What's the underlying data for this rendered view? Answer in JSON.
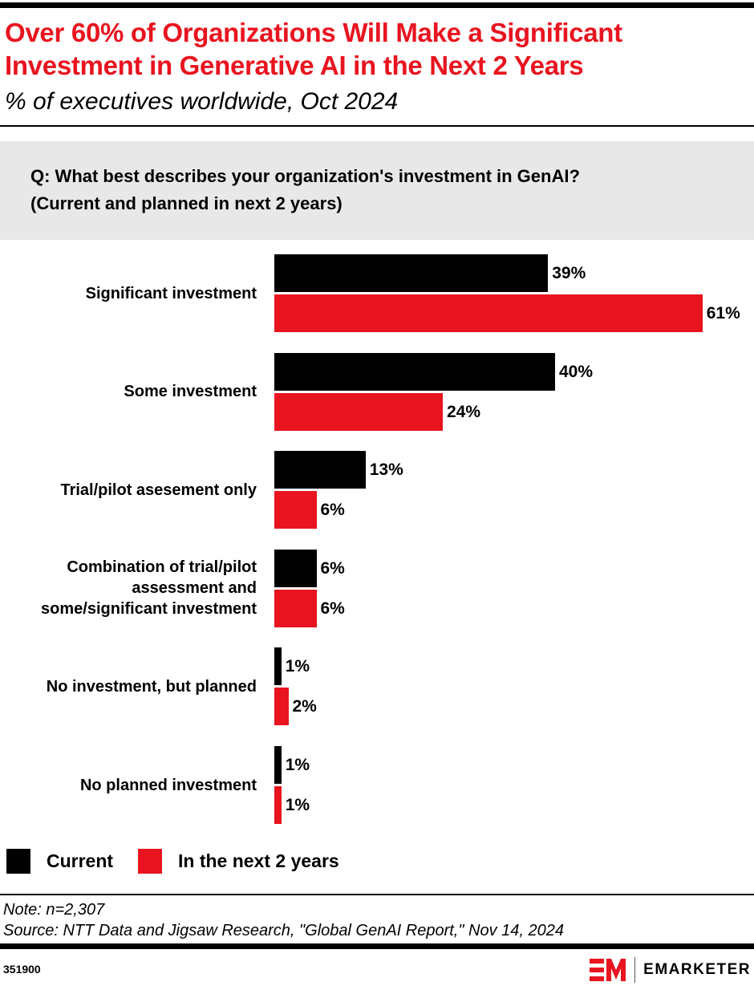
{
  "header": {
    "title": "Over 60% of Organizations Will Make a Significant Investment in Generative AI in the Next 2 Years",
    "subtitle": "% of executives worldwide, Oct 2024"
  },
  "question": {
    "line1": "Q: What best describes your organization's investment in GenAI?",
    "line2": "(Current and planned in next 2 years)"
  },
  "chart_data": {
    "type": "bar",
    "orientation": "horizontal",
    "categories": [
      "Significant investment",
      "Some investment",
      "Trial/pilot asesement only",
      "Combination of trial/pilot assessment and some/significant investment",
      "No investment, but planned",
      "No planned investment"
    ],
    "series": [
      {
        "name": "Current",
        "color": "#000000",
        "values": [
          39,
          40,
          13,
          6,
          1,
          1
        ]
      },
      {
        "name": "In the next 2 years",
        "color": "#e8141f",
        "values": [
          61,
          24,
          6,
          6,
          2,
          1
        ]
      }
    ],
    "value_suffix": "%",
    "xlim": [
      0,
      100
    ],
    "grid": false,
    "legend_placement": "bottom-left"
  },
  "footer": {
    "note": "Note: n=2,307",
    "source": "Source: NTT Data and Jigsaw Research, \"Global GenAI Report,\" Nov 14, 2024",
    "chart_id": "351900",
    "brand": "EMARKETER",
    "brand_color": "#e8141f"
  }
}
